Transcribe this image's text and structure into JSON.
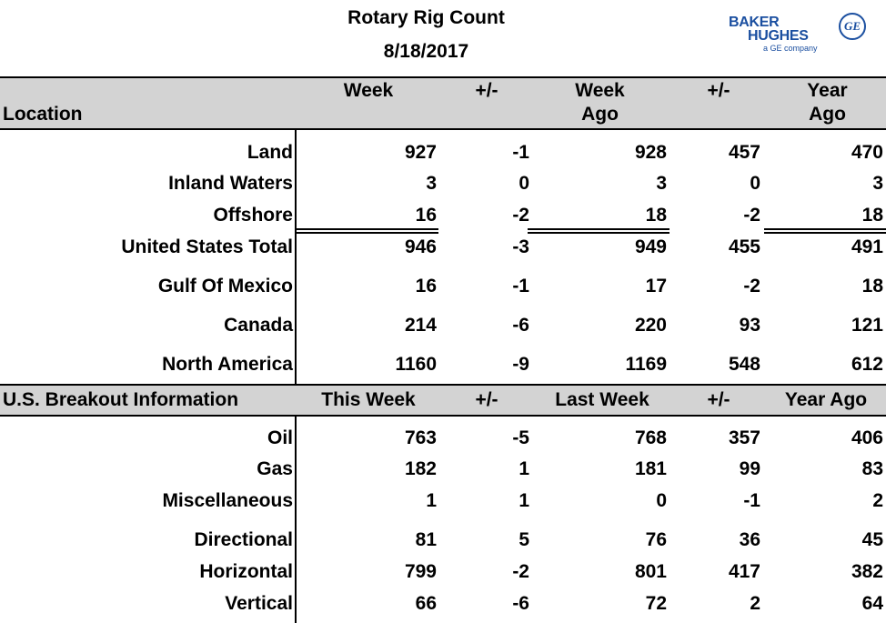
{
  "title": "Rotary Rig Count",
  "date": "8/18/2017",
  "logo": {
    "line1": "BAKER",
    "line2": "HUGHES",
    "sub": "a GE company",
    "ge_mark": "GE"
  },
  "header1": {
    "location": "Location",
    "week": "Week",
    "pm1": "+/-",
    "week_ago_1": "Week",
    "week_ago_2": "Ago",
    "pm2": "+/-",
    "year_ago_1": "Year",
    "year_ago_2": "Ago"
  },
  "rows1": [
    {
      "label": "Land",
      "week": "927",
      "pm1": "-1",
      "week_ago": "928",
      "pm2": "457",
      "year_ago": "470"
    },
    {
      "label": "Inland Waters",
      "week": "3",
      "pm1": "0",
      "week_ago": "3",
      "pm2": "0",
      "year_ago": "3"
    },
    {
      "label": "Offshore",
      "week": "16",
      "pm1": "-2",
      "week_ago": "18",
      "pm2": "-2",
      "year_ago": "18"
    },
    {
      "label": "United States Total",
      "week": "946",
      "pm1": "-3",
      "week_ago": "949",
      "pm2": "455",
      "year_ago": "491"
    },
    {
      "label": "Gulf Of Mexico",
      "week": "16",
      "pm1": "-1",
      "week_ago": "17",
      "pm2": "-2",
      "year_ago": "18"
    },
    {
      "label": "Canada",
      "week": "214",
      "pm1": "-6",
      "week_ago": "220",
      "pm2": "93",
      "year_ago": "121"
    },
    {
      "label": "North America",
      "week": "1160",
      "pm1": "-9",
      "week_ago": "1169",
      "pm2": "548",
      "year_ago": "612"
    }
  ],
  "header2": {
    "label": "U.S. Breakout Information",
    "this_week": "This Week",
    "pm1": "+/-",
    "last_week": "Last Week",
    "pm2": "+/-",
    "year_ago": "Year Ago"
  },
  "rows2": [
    {
      "label": "Oil",
      "week": "763",
      "pm1": "-5",
      "week_ago": "768",
      "pm2": "357",
      "year_ago": "406"
    },
    {
      "label": "Gas",
      "week": "182",
      "pm1": "1",
      "week_ago": "181",
      "pm2": "99",
      "year_ago": "83"
    },
    {
      "label": "Miscellaneous",
      "week": "1",
      "pm1": "1",
      "week_ago": "0",
      "pm2": "-1",
      "year_ago": "2"
    },
    {
      "label": "Directional",
      "week": "81",
      "pm1": "5",
      "week_ago": "76",
      "pm2": "36",
      "year_ago": "45"
    },
    {
      "label": "Horizontal",
      "week": "799",
      "pm1": "-2",
      "week_ago": "801",
      "pm2": "417",
      "year_ago": "382"
    },
    {
      "label": "Vertical",
      "week": "66",
      "pm1": "-6",
      "week_ago": "72",
      "pm2": "2",
      "year_ago": "64"
    }
  ]
}
